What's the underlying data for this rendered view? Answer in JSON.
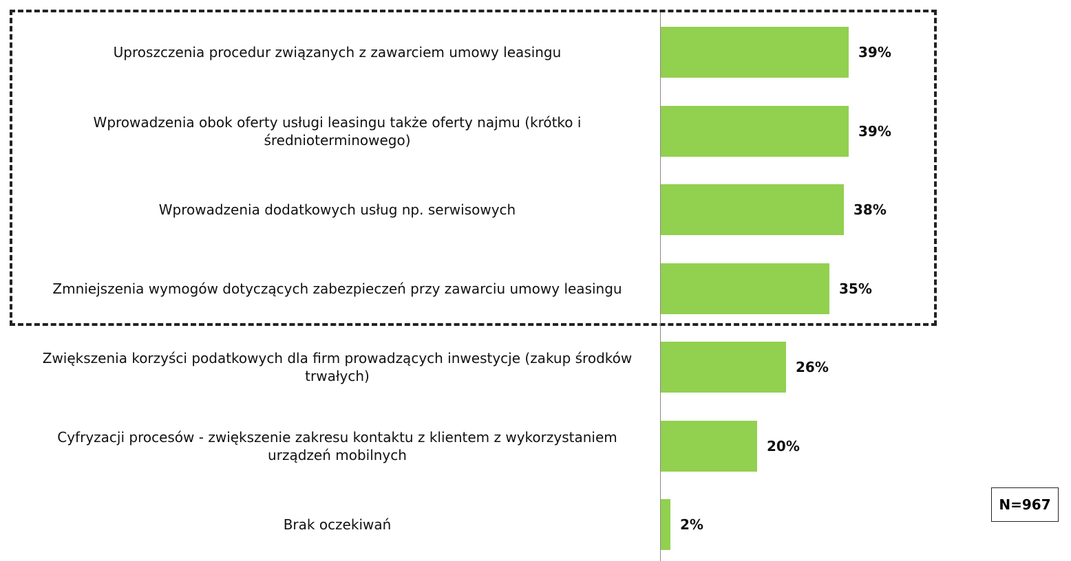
{
  "chart_data": {
    "type": "bar",
    "orientation": "horizontal",
    "categories": [
      "Uproszczenia procedur związanych z zawarciem umowy leasingu",
      "Wprowadzenia obok oferty usługi leasingu także oferty najmu (krótko i średnioterminowego)",
      "Wprowadzenia dodatkowych usług np. serwisowych",
      "Zmniejszenia wymogów dotyczących zabezpieczeń przy zawarciu umowy leasingu",
      "Zwiększenia korzyści podatkowych dla firm prowadzących inwestycje (zakup środków trwałych)",
      "Cyfryzacji procesów - zwiększenie zakresu kontaktu z klientem z wykorzystaniem urządzeń mobilnych",
      "Brak oczekiwań"
    ],
    "values": [
      39,
      39,
      38,
      35,
      26,
      20,
      2
    ],
    "value_labels": [
      "39%",
      "39%",
      "38%",
      "35%",
      "26%",
      "20%",
      "2%"
    ],
    "color": "#92d050",
    "note": "N=967"
  }
}
